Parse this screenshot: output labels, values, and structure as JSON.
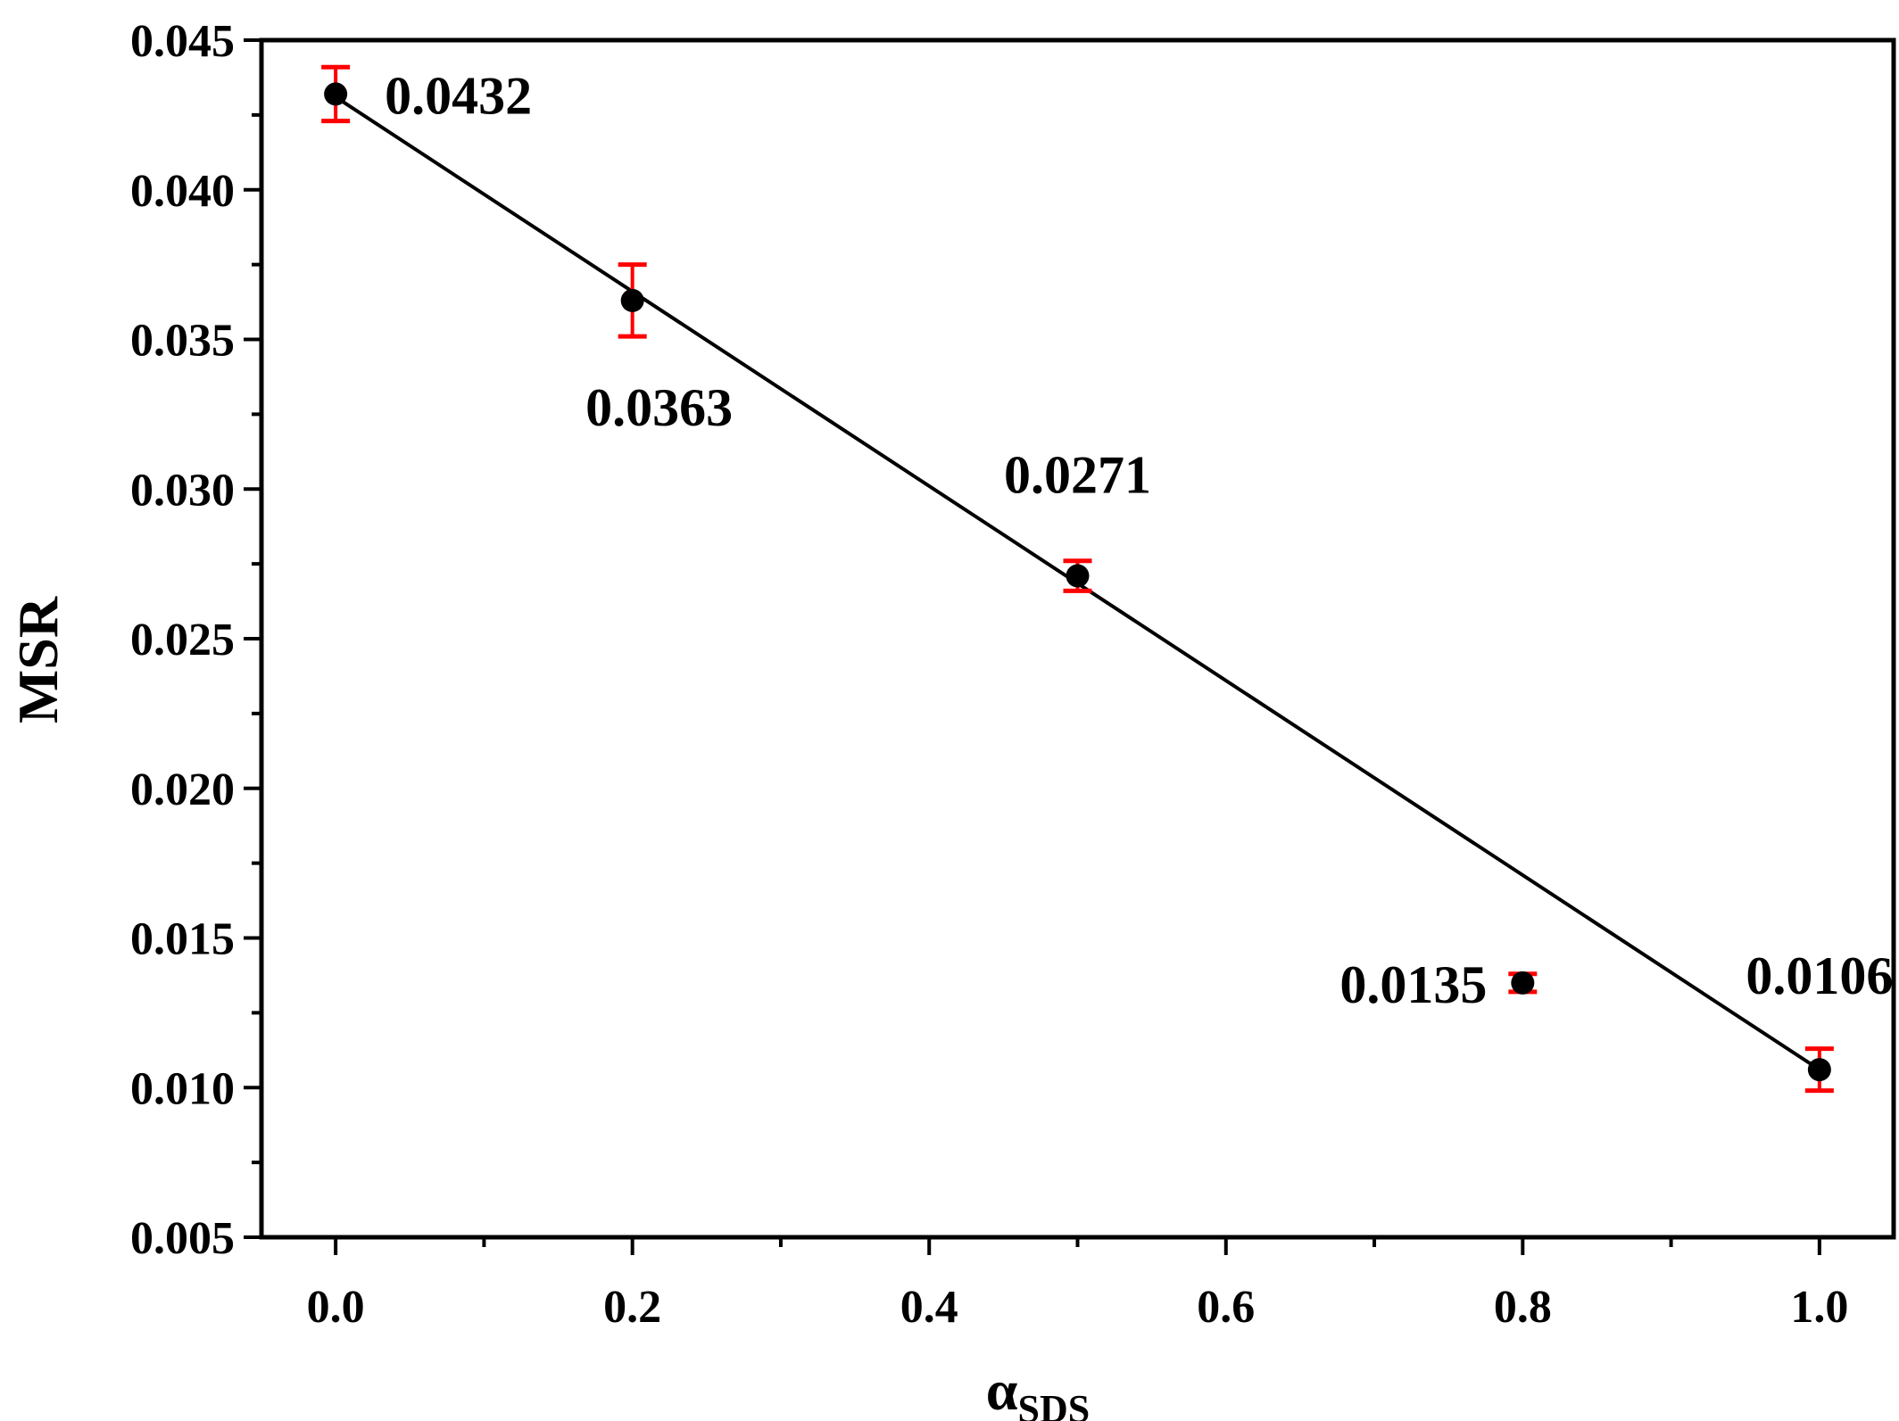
{
  "chart_data": {
    "type": "scatter",
    "title": "",
    "xlabel": "α",
    "xlabel_sub": "SDS",
    "ylabel": "MSR",
    "xlim": [
      -0.05,
      1.05
    ],
    "ylim": [
      0.005,
      0.045
    ],
    "x_ticks": [
      "0.0",
      "0.2",
      "0.4",
      "0.6",
      "0.8",
      "1.0"
    ],
    "y_ticks": [
      "0.005",
      "0.010",
      "0.015",
      "0.020",
      "0.025",
      "0.030",
      "0.035",
      "0.040",
      "0.045"
    ],
    "grid": false,
    "legend": "none",
    "series": [
      {
        "x": [
          0.0,
          0.2,
          0.5,
          0.8,
          1.0
        ],
        "y": [
          0.0432,
          0.0363,
          0.0271,
          0.0135,
          0.0106
        ],
        "error": [
          0.0009,
          0.0012,
          0.0005,
          0.0003,
          0.0007
        ],
        "labels": [
          "0.0432",
          "0.0363",
          "0.0271",
          "0.0135",
          "0.0106"
        ]
      }
    ],
    "fit_line": {
      "x": [
        0.0,
        1.0
      ],
      "y": [
        0.0431,
        0.0106
      ]
    },
    "colors": {
      "points": "#000000",
      "error_bars": "#ff0000",
      "line": "#000000"
    }
  }
}
